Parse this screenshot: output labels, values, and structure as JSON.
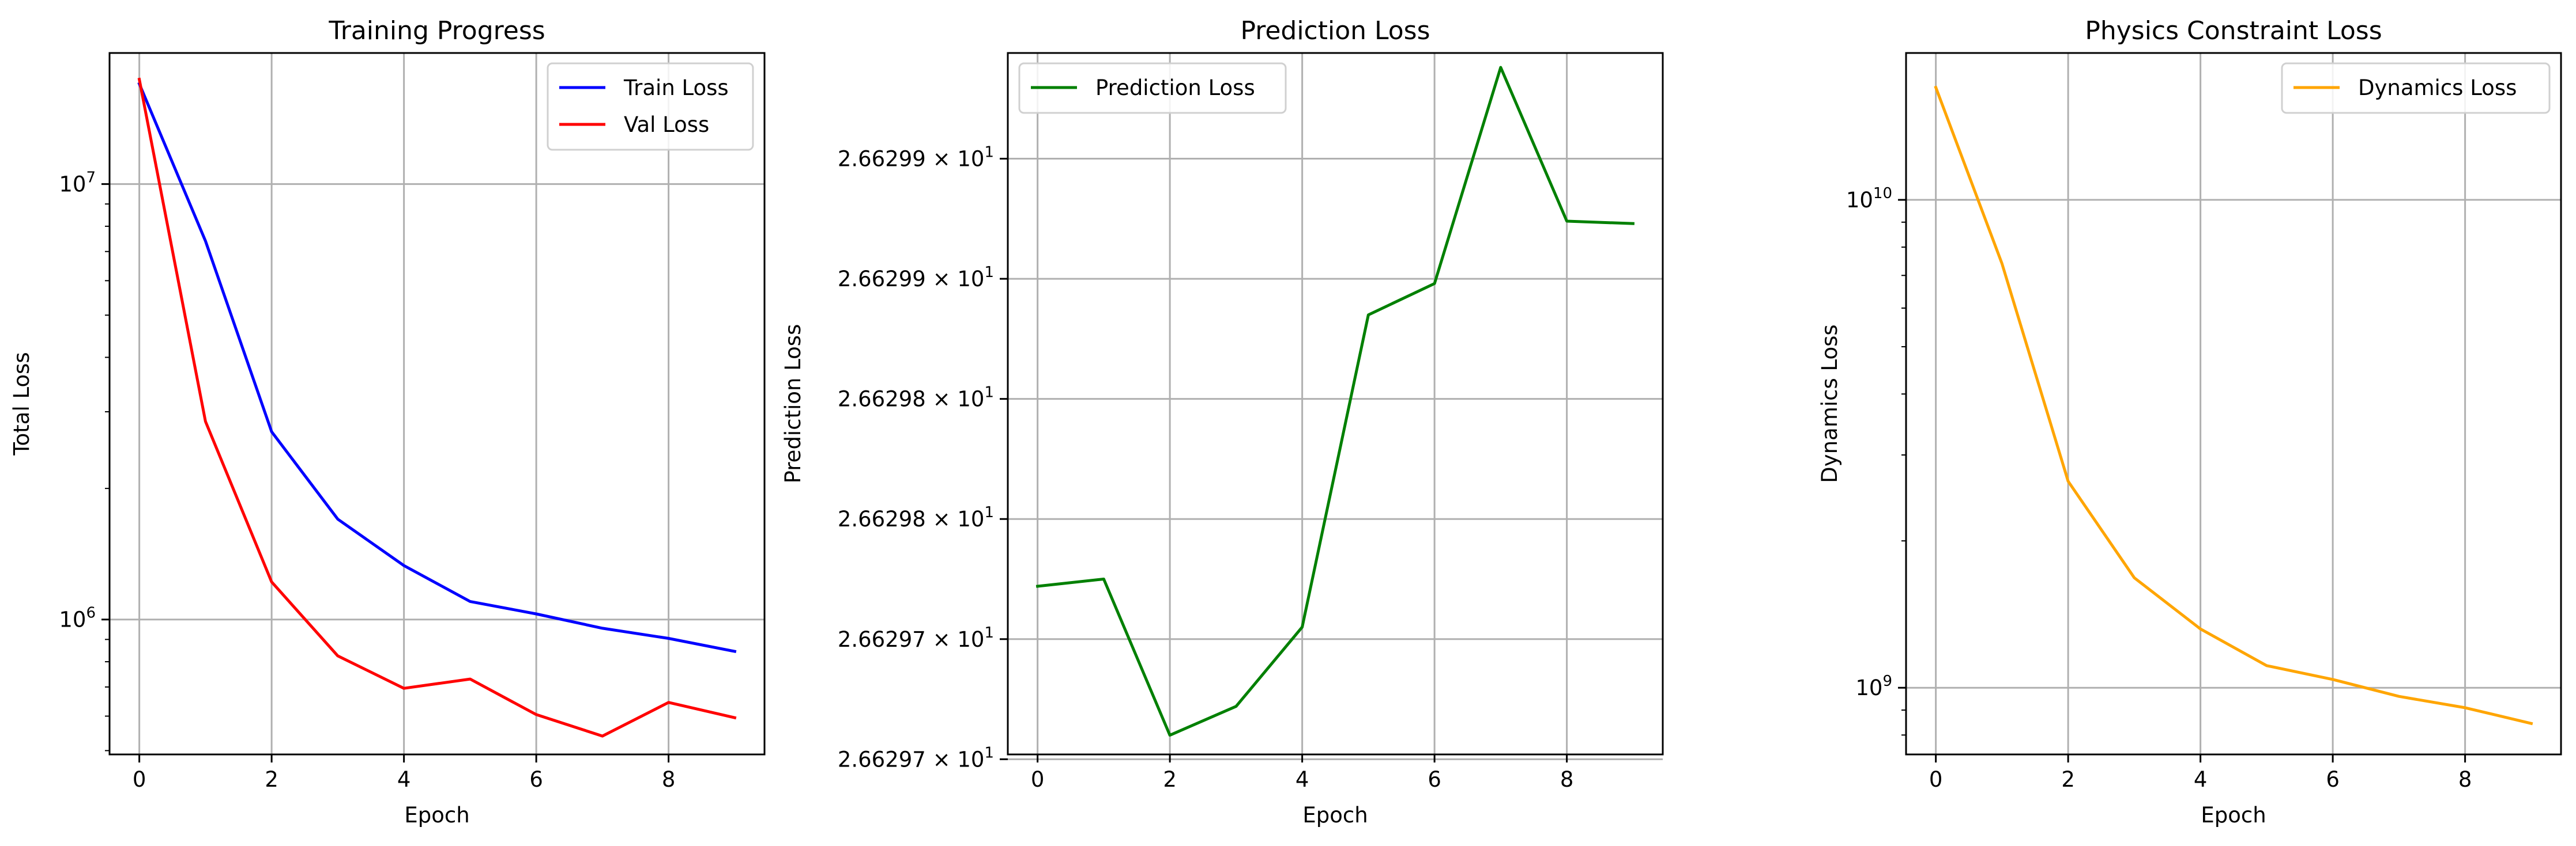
{
  "chart_data": [
    {
      "type": "line",
      "title": "Training Progress",
      "xlabel": "Epoch",
      "ylabel": "Total Loss",
      "yscale": "log",
      "xlim": [
        -0.45,
        9.45
      ],
      "ylim": [
        490000,
        20000000
      ],
      "x": [
        0,
        1,
        2,
        3,
        4,
        5,
        6,
        7,
        8,
        9
      ],
      "xticks": [
        0,
        2,
        4,
        6,
        8
      ],
      "xtick_labels": [
        "0",
        "2",
        "4",
        "6",
        "8"
      ],
      "yticks": [
        10000000,
        1000000
      ],
      "ytick_labels": [
        {
          "base": "10",
          "exp": "7"
        },
        {
          "base": "10",
          "exp": "6"
        }
      ],
      "grid": true,
      "legend": "top-right",
      "series": [
        {
          "name": "Train Loss",
          "color": "#0000ff",
          "values": [
            17000000,
            7400000,
            2700000,
            1700000,
            1330000,
            1100000,
            1030000,
            955000,
            905000,
            845000
          ]
        },
        {
          "name": "Val Loss",
          "color": "#ff0000",
          "values": [
            17400000,
            2850000,
            1220000,
            825000,
            695000,
            730000,
            605000,
            540000,
            645000,
            595000
          ]
        }
      ]
    },
    {
      "type": "line",
      "title": "Prediction Loss",
      "xlabel": "Epoch",
      "ylabel": "Prediction Loss",
      "yscale": "log",
      "xlim": [
        -0.45,
        9.45
      ],
      "ylim": [
        26.629652,
        26.629944
      ],
      "x": [
        0,
        1,
        2,
        3,
        4,
        5,
        6,
        7,
        8,
        9
      ],
      "xticks": [
        0,
        2,
        4,
        6,
        8
      ],
      "xtick_labels": [
        "0",
        "2",
        "4",
        "6",
        "8"
      ],
      "yticks": [
        26.6299,
        26.62985,
        26.6298,
        26.62975,
        26.6297,
        26.62965
      ],
      "ytick_labels": [
        {
          "base": "2.66299",
          "exp": "1"
        },
        {
          "base": "2.66299",
          "exp": "1"
        },
        {
          "base": "2.66298",
          "exp": "1"
        },
        {
          "base": "2.66298",
          "exp": "1"
        },
        {
          "base": "2.66297",
          "exp": "1"
        },
        {
          "base": "2.66297",
          "exp": "1"
        }
      ],
      "tick_multiplier": "× ",
      "grid": true,
      "legend": "top-left",
      "series": [
        {
          "name": "Prediction Loss",
          "color": "#008000",
          "values": [
            26.629722,
            26.629725,
            26.62966,
            26.629672,
            26.629705,
            26.629835,
            26.629848,
            26.629938,
            26.629874,
            26.629873
          ]
        }
      ]
    },
    {
      "type": "line",
      "title": "Physics Constraint Loss",
      "xlabel": "Epoch",
      "ylabel": "Dynamics Loss",
      "yscale": "log",
      "xlim": [
        -0.45,
        9.45
      ],
      "ylim": [
        730000000,
        20000000000
      ],
      "x": [
        0,
        1,
        2,
        3,
        4,
        5,
        6,
        7,
        8,
        9
      ],
      "xticks": [
        0,
        2,
        4,
        6,
        8
      ],
      "xtick_labels": [
        "0",
        "2",
        "4",
        "6",
        "8"
      ],
      "yticks": [
        10000000000,
        1000000000
      ],
      "ytick_labels": [
        {
          "base": "10",
          "exp": "10"
        },
        {
          "base": "10",
          "exp": "9"
        }
      ],
      "grid": true,
      "legend": "top-right",
      "series": [
        {
          "name": "Dynamics Loss",
          "color": "#ffa500",
          "values": [
            17000000000,
            7400000000,
            2650000000,
            1680000000,
            1320000000,
            1110000000,
            1040000000,
            960000000,
            910000000,
            845000000
          ]
        }
      ]
    }
  ]
}
